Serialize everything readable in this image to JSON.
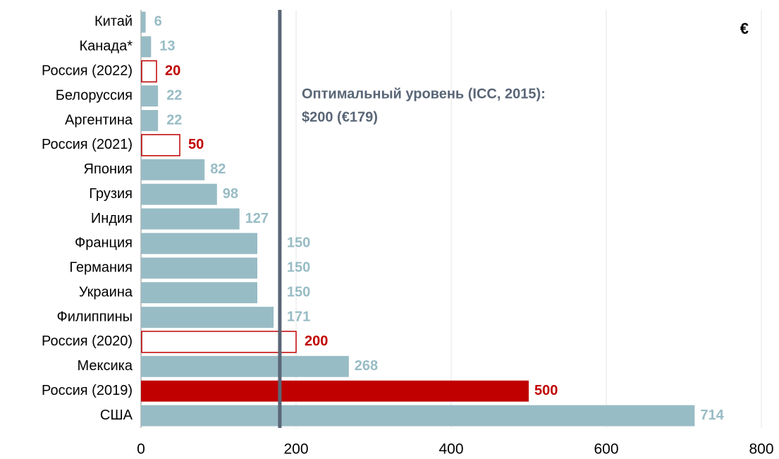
{
  "chart_data": {
    "type": "bar",
    "orientation": "horizontal",
    "categories": [
      "Китай",
      "Канада*",
      "Россия (2022)",
      "Белоруссия",
      "Аргентина",
      "Россия (2021)",
      "Япония",
      "Грузия",
      "Индия",
      "Франция",
      "Германия",
      "Украина",
      "Филиппины",
      "Россия (2020)",
      "Мексика",
      "Россия (2019)",
      "США"
    ],
    "values": [
      6,
      13,
      20,
      22,
      22,
      50,
      82,
      98,
      127,
      150,
      150,
      150,
      171,
      200,
      268,
      500,
      714
    ],
    "colors": [
      "#98bcc5",
      "#98bcc5",
      "#c00000",
      "#98bcc5",
      "#98bcc5",
      "#c00000",
      "#98bcc5",
      "#98bcc5",
      "#98bcc5",
      "#98bcc5",
      "#98bcc5",
      "#98bcc5",
      "#98bcc5",
      "#c00000",
      "#98bcc5",
      "#c00000",
      "#98bcc5"
    ],
    "outlined": [
      false,
      false,
      true,
      false,
      false,
      true,
      false,
      false,
      false,
      false,
      false,
      false,
      false,
      true,
      false,
      false,
      false
    ],
    "xlim": [
      0,
      800
    ],
    "xticks": [
      0,
      200,
      400,
      600,
      800
    ],
    "grid": true,
    "reference_line": {
      "value": 179,
      "color": "#5a6677",
      "label_lines": [
        "Оптимальный уровень (ICC, 2015):",
        "$200 (€179)"
      ]
    },
    "unit_label": "€"
  }
}
